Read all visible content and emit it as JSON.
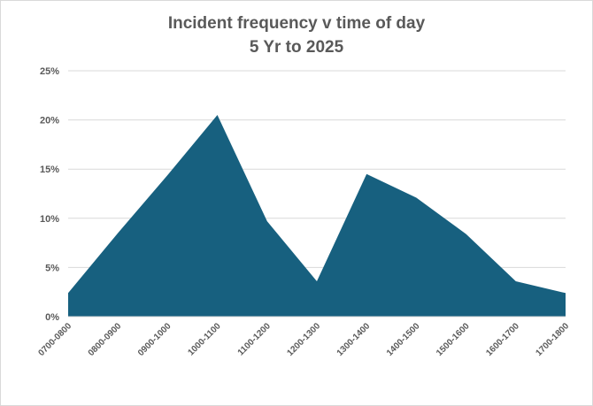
{
  "chart_data": {
    "type": "area",
    "title_line1": "Incident frequency v time of day",
    "title_line2": "5 Yr to 2025",
    "xlabel": "",
    "ylabel": "",
    "categories": [
      "0700-0800",
      "0800-0900",
      "0900-1000",
      "1000-1100",
      "1100-1200",
      "1200-1300",
      "1300-1400",
      "1400-1500",
      "1500-1600",
      "1600-1700",
      "1700-1800"
    ],
    "series": [
      {
        "values": [
          2.4,
          8.5,
          14.4,
          20.5,
          9.7,
          3.6,
          14.5,
          12.1,
          8.4,
          3.6,
          2.4
        ]
      }
    ],
    "ylim": [
      0,
      25
    ],
    "yticks": [
      0,
      5,
      10,
      15,
      20,
      25
    ],
    "ytick_labels": [
      "0%",
      "5%",
      "10%",
      "15%",
      "20%",
      "25%"
    ],
    "grid": true,
    "legend": "none",
    "colors": {
      "fill": "#17607f",
      "grid": "#d9d9d9",
      "text": "#595959"
    }
  }
}
